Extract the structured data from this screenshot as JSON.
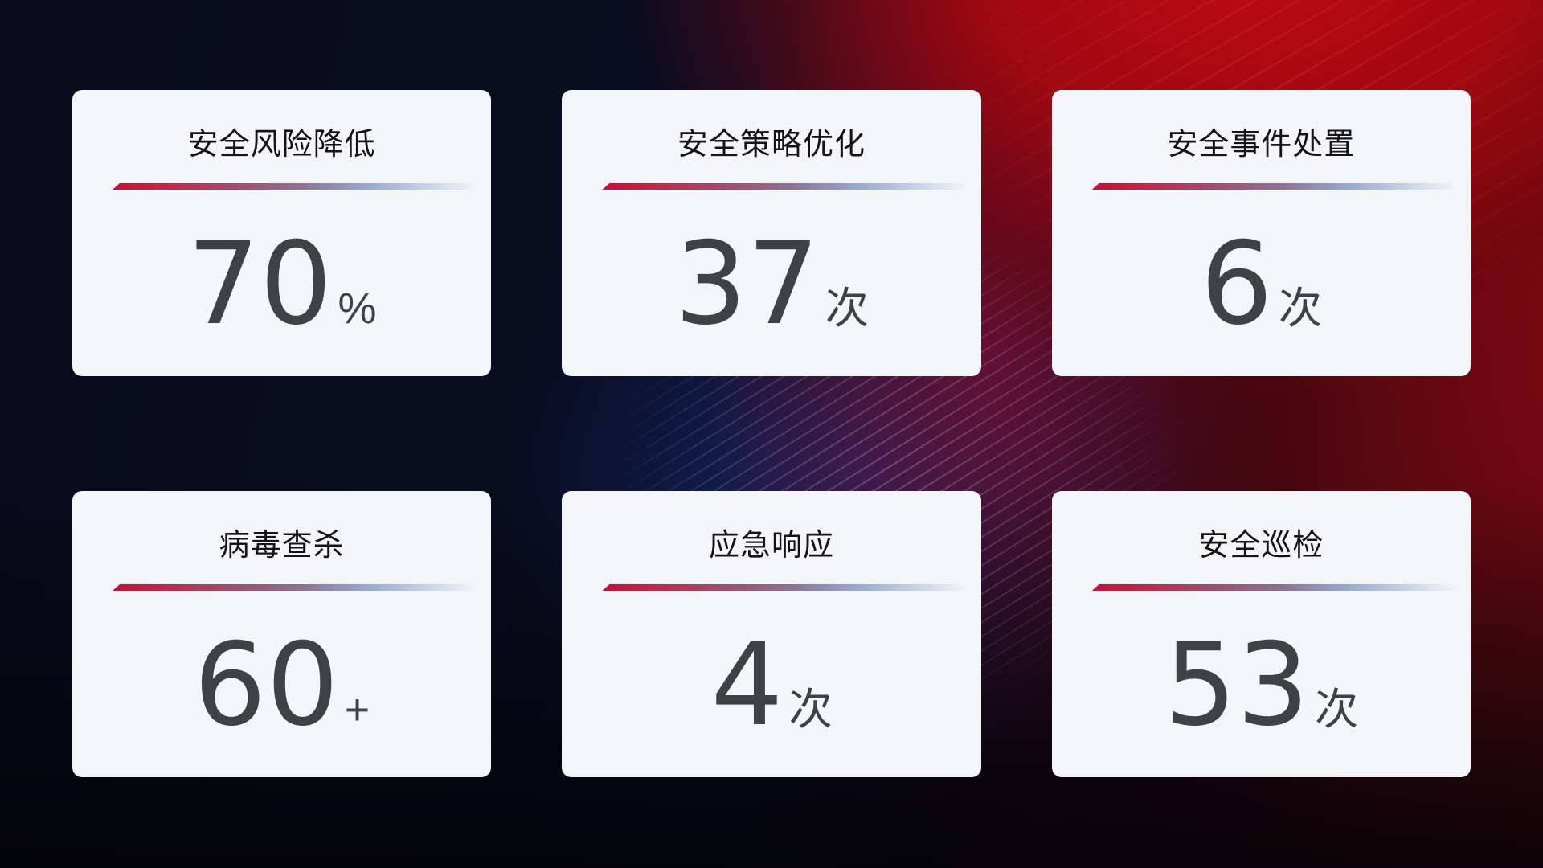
{
  "page": {
    "description": "security-operations-kpi-dashboard"
  },
  "cards": [
    {
      "title": "安全风险降低",
      "value": "70",
      "unit": "%"
    },
    {
      "title": "安全策略优化",
      "value": "37",
      "unit": "次"
    },
    {
      "title": "安全事件处置",
      "value": "6",
      "unit": "次"
    },
    {
      "title": "病毒查杀",
      "value": "60",
      "unit": "+"
    },
    {
      "title": "应急响应",
      "value": "4",
      "unit": "次"
    },
    {
      "title": "安全巡检",
      "value": "53",
      "unit": "次"
    }
  ],
  "colors": {
    "card_bg": "#f4f5f9",
    "title_text": "#131318",
    "value_text": "#3f4147",
    "divider_red": "#c40f3a",
    "divider_blue": "#94a5c8",
    "bg_navy": "#0a0c21",
    "bg_red_glow": "#b60d14",
    "bg_blue_glow": "#1e3ea2"
  }
}
